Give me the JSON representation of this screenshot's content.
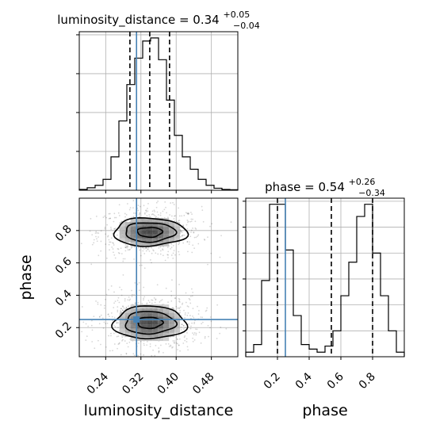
{
  "chart_data": [
    {
      "type": "histogram",
      "panel": "luminosity_distance marginal",
      "title_prefix": "luminosity_distance = 0.34",
      "title_sup": "+0.05",
      "title_sub": "−0.04",
      "xlim": [
        0.18,
        0.54
      ],
      "bin_edges": [
        0.18,
        0.198,
        0.216,
        0.234,
        0.252,
        0.27,
        0.288,
        0.306,
        0.324,
        0.342,
        0.36,
        0.378,
        0.396,
        0.414,
        0.432,
        0.45,
        0.468,
        0.486,
        0.504,
        0.522,
        0.54
      ],
      "counts": [
        0.5,
        1.6,
        3.2,
        7.0,
        21.5,
        44.6,
        68.0,
        85.0,
        96.0,
        98.0,
        84.0,
        58.0,
        35.3,
        21.5,
        13.5,
        7.0,
        3.2,
        1.3,
        0.5,
        0.3
      ],
      "ylim": [
        0,
        102
      ],
      "quantile_lines": [
        0.295,
        0.34,
        0.385
      ],
      "truth": 0.31
    },
    {
      "type": "scatter+contour",
      "panel": "luminosity_distance vs phase",
      "xlabel": "luminosity_distance",
      "ylabel": "phase",
      "xlim": [
        0.18,
        0.54
      ],
      "ylim": [
        0.02,
        1.0
      ],
      "xticks": [
        "0.24",
        "0.32",
        "0.40",
        "0.48"
      ],
      "xtick_values": [
        0.24,
        0.32,
        0.4,
        0.48
      ],
      "yticks": [
        "0.2",
        "0.4",
        "0.6",
        "0.8"
      ],
      "ytick_values": [
        0.2,
        0.4,
        0.6,
        0.8
      ],
      "modes": [
        {
          "x": 0.34,
          "y": 0.79,
          "sx": 0.045,
          "sy": 0.06,
          "weight": 0.5
        },
        {
          "x": 0.34,
          "y": 0.23,
          "sx": 0.045,
          "sy": 0.07,
          "weight": 0.5
        }
      ],
      "contour_scales": [
        0.55,
        1.1,
        1.6
      ],
      "truth": {
        "x": 0.31,
        "y": 0.25
      }
    },
    {
      "type": "histogram",
      "panel": "phase marginal",
      "title_prefix": "phase = 0.54",
      "title_sup": "+0.26",
      "title_sub": "−0.34",
      "xlabel": "phase",
      "xlim": [
        0.0,
        1.0
      ],
      "xticks": [
        "0.2",
        "0.4",
        "0.6",
        "0.8"
      ],
      "xtick_values": [
        0.2,
        0.4,
        0.6,
        0.8
      ],
      "bin_edges": [
        0.0,
        0.05,
        0.1,
        0.15,
        0.2,
        0.25,
        0.3,
        0.35,
        0.4,
        0.45,
        0.5,
        0.55,
        0.6,
        0.65,
        0.7,
        0.75,
        0.8,
        0.85,
        0.9,
        0.95,
        1.0
      ],
      "counts": [
        3,
        8,
        50,
        100,
        100,
        70,
        27,
        8,
        5,
        3,
        7,
        17,
        40,
        62,
        92,
        100,
        68,
        40,
        17,
        3
      ],
      "ylim": [
        0,
        104
      ],
      "quantile_lines": [
        0.2,
        0.54,
        0.8
      ],
      "truth": 0.25
    }
  ],
  "colors": {
    "truth": "#4682b4",
    "line": "#000000",
    "grid": "#b0b0b0"
  }
}
